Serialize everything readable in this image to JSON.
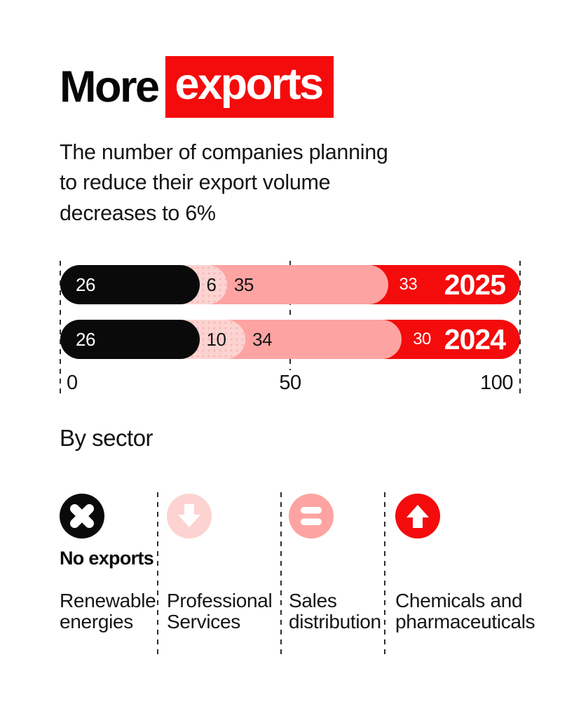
{
  "title": {
    "black": "More",
    "highlight": "exports"
  },
  "subtitle": "The number of companies planning\nto reduce their export volume\ndecreases to 6%",
  "by_sector_heading": "By sector",
  "chart_data": {
    "type": "bar",
    "orientation": "horizontal",
    "stacked": true,
    "categories": [
      "2025",
      "2024"
    ],
    "series": [
      {
        "name": "No exports",
        "color": "#0a0a0a",
        "label_color": "#ffffff",
        "values": [
          26,
          26
        ]
      },
      {
        "name": "Decrease",
        "color": "#fcd3d1",
        "label_color": "#141414",
        "pattern": "dots",
        "values": [
          6,
          10
        ]
      },
      {
        "name": "Stable",
        "color": "#fda4a2",
        "label_color": "#141414",
        "values": [
          35,
          34
        ]
      },
      {
        "name": "Increase",
        "color": "#f40b0b",
        "label_color": "#ffffff",
        "values": [
          33,
          30
        ]
      }
    ],
    "xlim": [
      0,
      100
    ],
    "xticks": [
      "0",
      "50",
      "100"
    ],
    "grid": "dashed-vertical",
    "value_labels": true
  },
  "sectors": [
    {
      "trend": "no-exports",
      "badge": "No exports",
      "name": "Renewable energies",
      "icon_color": "#0a0a0a"
    },
    {
      "trend": "decrease",
      "name": "Professional Services",
      "icon_color": "#fcd3d1"
    },
    {
      "trend": "stable",
      "name": "Sales distribution",
      "icon_color": "#fda4a2"
    },
    {
      "trend": "increase",
      "name": "Chemicals and pharmaceuticals",
      "icon_color": "#f40b0b"
    }
  ],
  "colors": {
    "accent_red": "#f40b0b",
    "black": "#0a0a0a",
    "pink_light": "#fcd3d1",
    "pink": "#fda4a2"
  }
}
